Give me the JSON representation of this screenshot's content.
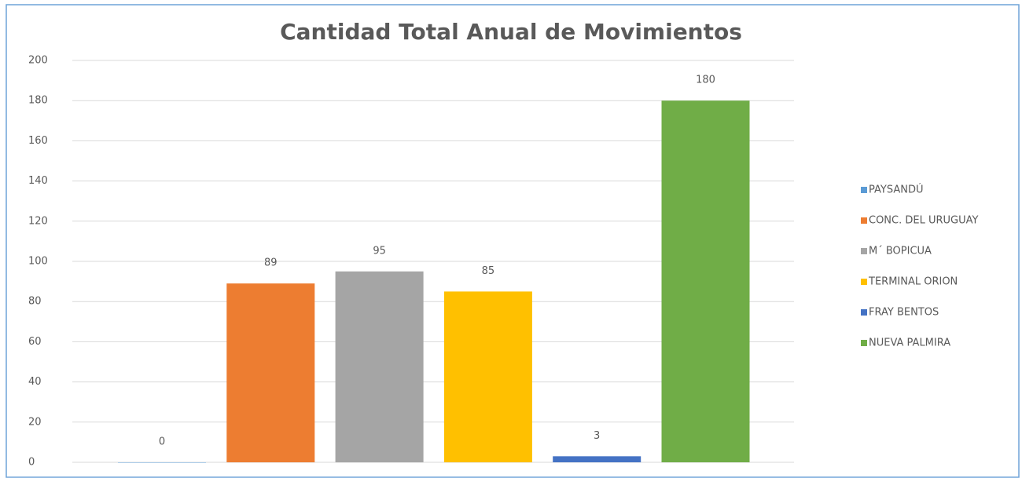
{
  "chart_data": {
    "type": "bar",
    "title": "Cantidad Total Anual de Movimientos",
    "series": [
      {
        "name": "PAYSANDÚ",
        "color": "#5b9bd5",
        "values": [
          0
        ]
      },
      {
        "name": "CONC. DEL URUGUAY",
        "color": "#ed7d31",
        "values": [
          89
        ]
      },
      {
        "name": "M´ BOPICUA",
        "color": "#a5a5a5",
        "values": [
          95
        ]
      },
      {
        "name": "TERMINAL ORION",
        "color": "#ffc000",
        "values": [
          85
        ]
      },
      {
        "name": "FRAY BENTOS",
        "color": "#4472c4",
        "values": [
          3
        ]
      },
      {
        "name": "NUEVA PALMIRA",
        "color": "#70ad47",
        "values": [
          180
        ]
      }
    ],
    "ylim": [
      0,
      200
    ],
    "yticks": [
      0,
      20,
      40,
      60,
      80,
      100,
      120,
      140,
      160,
      180,
      200
    ],
    "grid": true,
    "legend": "right"
  }
}
